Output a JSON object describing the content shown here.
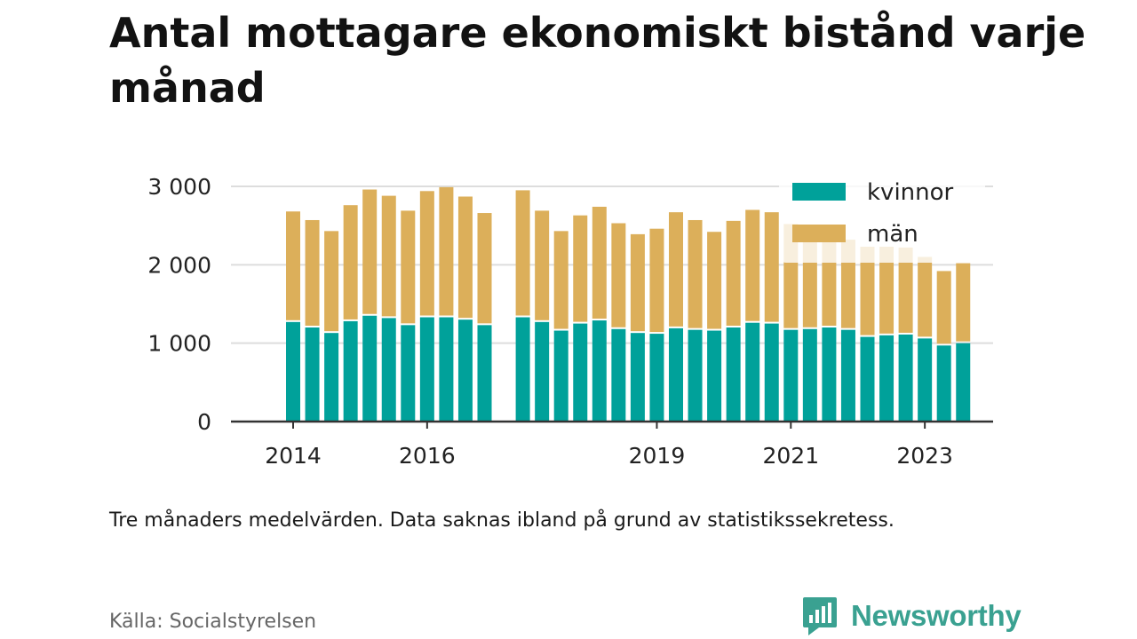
{
  "title": "Antal mottagare ekonomiskt bistånd varje månad",
  "note": "Tre månaders medelvärden. Data saknas ibland på grund av statistikssekretess.",
  "source": "Källa: Socialstyrelsen",
  "brand": "Newsworthy",
  "colors": {
    "kvinnor": "#00a19a",
    "man": "#dcaf5a",
    "brand": "#3aa191"
  },
  "chart_data": {
    "type": "bar",
    "stacked": true,
    "title": "Antal mottagare ekonomiskt bistånd varje månad",
    "xlabel": "",
    "ylabel": "",
    "ylim": [
      0,
      3000
    ],
    "yticks": [
      0,
      1000,
      2000,
      3000
    ],
    "ytick_labels": [
      "0",
      "1 000",
      "2 000",
      "3 000"
    ],
    "xticks": [
      {
        "label": "2014",
        "index": 0
      },
      {
        "label": "2016",
        "index": 7
      },
      {
        "label": "2019",
        "index": 19
      },
      {
        "label": "2021",
        "index": 26
      },
      {
        "label": "2023",
        "index": 33
      }
    ],
    "grid": true,
    "legend_position": "top-right",
    "series": [
      {
        "name": "kvinnor",
        "values": [
          1270,
          1200,
          1130,
          1280,
          1350,
          1320,
          1230,
          1330,
          1330,
          1300,
          1230,
          null,
          1330,
          1270,
          1160,
          1250,
          1290,
          1180,
          1130,
          1120,
          1190,
          1170,
          1160,
          1200,
          1260,
          1250,
          1170,
          1180,
          1200,
          1170,
          1080,
          1100,
          1110,
          1060,
          970,
          1000
        ]
      },
      {
        "name": "män",
        "values": [
          1410,
          1370,
          1300,
          1480,
          1610,
          1560,
          1460,
          1610,
          1660,
          1570,
          1430,
          null,
          1620,
          1420,
          1270,
          1380,
          1450,
          1350,
          1260,
          1340,
          1480,
          1400,
          1260,
          1360,
          1440,
          1420,
          1350,
          1320,
          1250,
          1150,
          1150,
          1130,
          1110,
          1040,
          950,
          1020
        ]
      }
    ]
  }
}
